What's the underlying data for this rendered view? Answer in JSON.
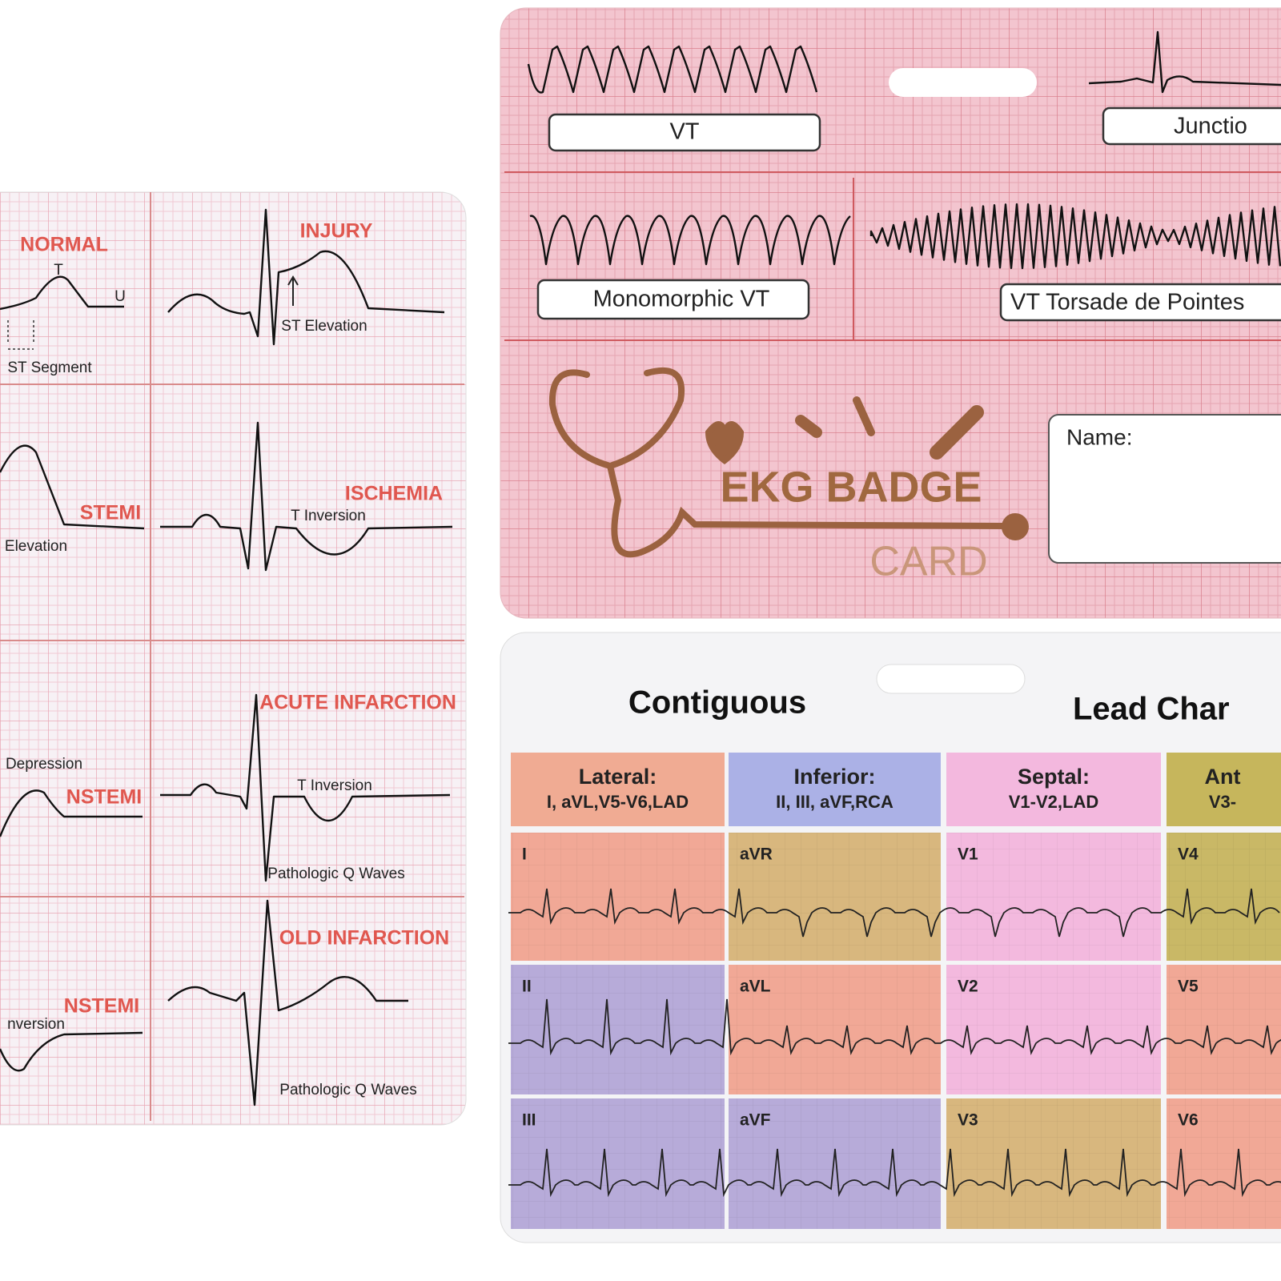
{
  "diagnostic_card": {
    "panels": [
      {
        "title": "NORMAL",
        "labels": [
          "T",
          "U",
          "ST Segment"
        ]
      },
      {
        "title": "INJURY",
        "labels": [
          "ST Elevation"
        ]
      },
      {
        "title": "STEMI",
        "labels": [
          "Elevation"
        ]
      },
      {
        "title": "ISCHEMIA",
        "labels": [
          "T Inversion"
        ]
      },
      {
        "title": "NSTEMI",
        "labels": [
          "Depression"
        ]
      },
      {
        "title": "ACUTE INFARCTION",
        "labels": [
          "T Inversion",
          "Pathologic Q Waves"
        ]
      },
      {
        "title": "NSTEMI",
        "labels": [
          "nversion"
        ]
      },
      {
        "title": "OLD INFARCTION",
        "labels": [
          "Pathologic Q Waves"
        ]
      }
    ]
  },
  "badge_card": {
    "rhythms": [
      "VT",
      "Junctio",
      "Monomorphic VT",
      "VT Torsade de Pointes"
    ],
    "logo_title": "EKG BADGE",
    "logo_subtitle": "CARD",
    "name_label": "Name:"
  },
  "lead_card": {
    "title": "Contiguous",
    "title_right": "Lead Char",
    "groups": [
      {
        "name": "Lateral:",
        "leads": "I, aVL,V5-V6,LAD"
      },
      {
        "name": "Inferior:",
        "leads": "II, III, aVF,RCA"
      },
      {
        "name": "Septal:",
        "leads": "V1-V2,LAD"
      },
      {
        "name": "Ant",
        "leads": "V3-"
      }
    ],
    "grid": [
      [
        "I",
        "aVR",
        "V1",
        "V4"
      ],
      [
        "II",
        "aVL",
        "V2",
        "V5"
      ],
      [
        "III",
        "aVF",
        "V3",
        "V6"
      ]
    ]
  }
}
